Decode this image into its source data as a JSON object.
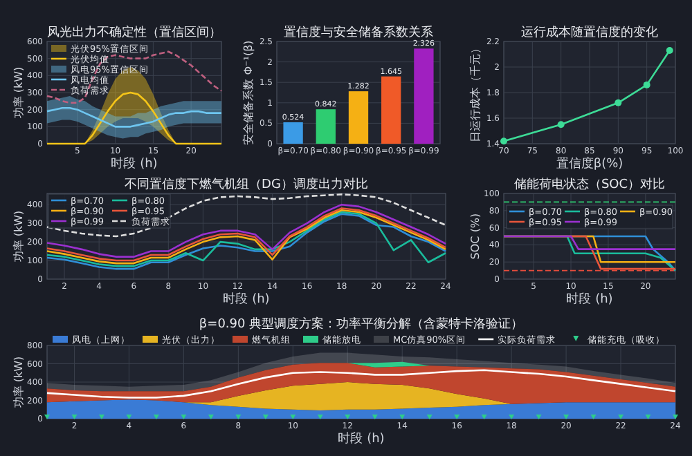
{
  "chart_data": [
    {
      "type": "line",
      "title": "风光出力不确定性（置信区间）",
      "xlabel": "时段 (h)",
      "ylabel": "功率 (kW)",
      "annotations": [
        "光伏95%置信区间",
        "风电95%置信区间"
      ],
      "x": [
        1,
        2,
        3,
        4,
        5,
        6,
        7,
        8,
        9,
        10,
        11,
        12,
        13,
        14,
        15,
        16,
        17,
        18,
        19,
        20,
        21,
        22,
        23,
        24
      ],
      "xlim": [
        1,
        24
      ],
      "xticks": [
        5,
        10,
        15,
        20
      ],
      "ylim": [
        0,
        600
      ],
      "yticks": [
        0,
        100,
        200,
        300,
        400,
        500,
        600
      ],
      "grid": true,
      "legend": "top left",
      "series": [
        {
          "name": "光伏均值",
          "color": "#f5c518",
          "values": [
            0,
            0,
            0,
            0,
            0,
            0,
            50,
            120,
            190,
            250,
            290,
            300,
            290,
            250,
            190,
            120,
            50,
            0,
            0,
            0,
            0,
            0,
            0,
            0
          ],
          "lower": [
            0,
            0,
            0,
            0,
            0,
            0,
            20,
            60,
            100,
            130,
            150,
            150,
            150,
            130,
            100,
            60,
            20,
            0,
            0,
            0,
            0,
            0,
            0,
            0
          ],
          "upper": [
            0,
            0,
            0,
            0,
            0,
            0,
            80,
            180,
            290,
            380,
            430,
            450,
            430,
            380,
            290,
            180,
            80,
            0,
            0,
            0,
            0,
            0,
            0,
            0
          ]
        },
        {
          "name": "风电均值",
          "color": "#6ec6f0",
          "values": [
            190,
            200,
            210,
            210,
            200,
            180,
            160,
            140,
            120,
            100,
            100,
            100,
            110,
            120,
            130,
            150,
            170,
            180,
            180,
            190,
            190,
            180,
            180,
            180
          ],
          "lower": [
            120,
            130,
            140,
            140,
            130,
            110,
            90,
            70,
            50,
            40,
            30,
            40,
            40,
            60,
            70,
            80,
            100,
            110,
            120,
            120,
            120,
            120,
            120,
            120
          ],
          "upper": [
            250,
            260,
            270,
            280,
            260,
            250,
            220,
            200,
            180,
            160,
            160,
            160,
            180,
            180,
            200,
            220,
            230,
            240,
            250,
            250,
            250,
            250,
            250,
            250
          ]
        },
        {
          "name": "负荷需求",
          "color": "#c06080",
          "line_style": "dashed",
          "values": [
            280,
            270,
            250,
            240,
            240,
            270,
            380,
            470,
            510,
            520,
            510,
            500,
            500,
            500,
            520,
            530,
            540,
            520,
            490,
            460,
            420,
            380,
            340,
            310
          ]
        }
      ]
    },
    {
      "type": "bar",
      "title": "置信度与安全储备系数关系",
      "ylabel": "安全储备系数 Φ⁻¹(β)",
      "categories": [
        "β=0.70",
        "β=0.80",
        "β=0.90",
        "β=0.95",
        "β=0.99"
      ],
      "values": [
        0.524,
        0.842,
        1.282,
        1.645,
        2.326
      ],
      "colors": [
        "#3b9be6",
        "#2ecc71",
        "#f5b014",
        "#f05a28",
        "#a020c0"
      ],
      "ylim": [
        0,
        2.5
      ],
      "yticks": [
        0,
        0.5,
        1,
        1.5,
        2,
        2.5
      ],
      "data_labels": true,
      "grid": true
    },
    {
      "type": "line",
      "title": "运行成本随置信度的变化",
      "xlabel": "置信度β(%)",
      "ylabel": "日运行成本（千元）",
      "x": [
        70,
        80,
        90,
        95,
        99
      ],
      "values": [
        1.42,
        1.55,
        1.72,
        1.86,
        2.13
      ],
      "color": "#3ddc97",
      "marker": "circle",
      "xlim": [
        70,
        100
      ],
      "xticks": [
        70,
        75,
        80,
        85,
        90,
        95,
        100
      ],
      "ylim": [
        1.4,
        2.2
      ],
      "yticks": [
        1.4,
        1.6,
        1.8,
        2,
        2.2
      ],
      "grid": true
    },
    {
      "type": "line",
      "title": "不同置信度下燃气机组（DG）调度出力对比",
      "xlabel": "时段 (h)",
      "ylabel": "功率 (kW)",
      "x": [
        1,
        2,
        3,
        4,
        5,
        6,
        7,
        8,
        9,
        10,
        11,
        12,
        13,
        14,
        15,
        16,
        17,
        18,
        19,
        20,
        21,
        22,
        23,
        24
      ],
      "xlim": [
        1,
        24
      ],
      "xticks": [
        2,
        4,
        6,
        8,
        10,
        12,
        14,
        16,
        18,
        20,
        22,
        24
      ],
      "ylim": [
        0,
        460
      ],
      "yticks": [
        0,
        100,
        200,
        300,
        400
      ],
      "grid": true,
      "legend": "top left",
      "series": [
        {
          "name": "β=0.70",
          "color": "#2f8fd8",
          "values": [
            115,
            105,
            85,
            65,
            55,
            55,
            90,
            90,
            130,
            165,
            180,
            170,
            150,
            150,
            175,
            250,
            310,
            350,
            340,
            290,
            280,
            230,
            200,
            150
          ]
        },
        {
          "name": "β=0.80",
          "color": "#1abc9c",
          "values": [
            130,
            120,
            100,
            80,
            70,
            70,
            100,
            100,
            140,
            100,
            200,
            190,
            160,
            160,
            200,
            260,
            320,
            360,
            350,
            300,
            155,
            210,
            90,
            140
          ]
        },
        {
          "name": "β=0.90",
          "color": "#f5b014",
          "values": [
            150,
            135,
            115,
            95,
            85,
            85,
            115,
            115,
            160,
            200,
            225,
            230,
            210,
            105,
            225,
            270,
            330,
            370,
            360,
            330,
            290,
            250,
            210,
            160
          ]
        },
        {
          "name": "β=0.95",
          "color": "#e8553a",
          "values": [
            165,
            150,
            130,
            110,
            100,
            100,
            130,
            130,
            175,
            215,
            240,
            245,
            225,
            130,
            230,
            280,
            340,
            380,
            370,
            340,
            300,
            260,
            220,
            170
          ]
        },
        {
          "name": "β=0.99",
          "color": "#9b30d0",
          "values": [
            195,
            180,
            160,
            135,
            120,
            120,
            150,
            150,
            200,
            240,
            260,
            260,
            240,
            160,
            250,
            300,
            360,
            400,
            390,
            360,
            320,
            280,
            240,
            190
          ]
        },
        {
          "name": "负荷需求",
          "color": "#dddddd",
          "line_style": "dashed",
          "values": [
            280,
            260,
            245,
            235,
            230,
            245,
            275,
            330,
            380,
            420,
            440,
            445,
            440,
            430,
            435,
            445,
            450,
            455,
            450,
            440,
            410,
            370,
            330,
            290
          ]
        }
      ]
    },
    {
      "type": "line",
      "title": "储能荷电状态（SOC）对比",
      "xlabel": "时段 (h)",
      "ylabel": "SOC (%)",
      "xlim": [
        1,
        24
      ],
      "xticks": [
        5,
        10,
        15,
        20
      ],
      "ylim": [
        0,
        100
      ],
      "yticks": [
        0,
        20,
        40,
        60,
        80,
        100
      ],
      "grid": true,
      "legend": "right",
      "ref_lines": [
        {
          "axis": "y",
          "value": 90,
          "color": "#2ecc71",
          "line_style": "dashed"
        },
        {
          "axis": "y",
          "value": 10,
          "color": "#e74c3c",
          "line_style": "dashed"
        }
      ],
      "series": [
        {
          "name": "β=0.70",
          "color": "#2f8fd8",
          "x": [
            1,
            20,
            21,
            23,
            24
          ],
          "values": [
            50,
            50,
            35,
            20,
            10
          ]
        },
        {
          "name": "β=0.80",
          "color": "#1abc9c",
          "x": [
            1,
            9.5,
            10.5,
            20,
            22,
            24
          ],
          "values": [
            50,
            50,
            30,
            30,
            25,
            10
          ]
        },
        {
          "name": "β=0.90",
          "color": "#f5b014",
          "x": [
            1,
            13,
            14,
            24
          ],
          "values": [
            50,
            50,
            20,
            20
          ]
        },
        {
          "name": "β=0.95",
          "color": "#e8553a",
          "x": [
            1,
            12,
            14,
            24
          ],
          "values": [
            50,
            50,
            12,
            12
          ]
        },
        {
          "name": "β=0.99",
          "color": "#9b30d0",
          "x": [
            1,
            10,
            11,
            24
          ],
          "values": [
            50,
            50,
            35,
            35
          ]
        }
      ]
    },
    {
      "type": "area",
      "stacked": true,
      "title": "β=0.90 典型调度方案：功率平衡分解（含蒙特卡洛验证）",
      "xlabel": "时段 (h)",
      "ylabel": "功率 (kW)",
      "annotations": [
        "MC仿真90%区间"
      ],
      "x": [
        1,
        2,
        3,
        4,
        5,
        6,
        7,
        8,
        9,
        10,
        11,
        12,
        13,
        14,
        15,
        16,
        17,
        18,
        19,
        20,
        21,
        22,
        23,
        24
      ],
      "xlim": [
        1,
        24
      ],
      "xticks": [
        2,
        4,
        6,
        8,
        10,
        12,
        14,
        16,
        18,
        20,
        22,
        24
      ],
      "ylim": [
        0,
        800
      ],
      "yticks": [
        0,
        200,
        400,
        600,
        800
      ],
      "grid": true,
      "legend": "top",
      "series": [
        {
          "name": "风电（上网）",
          "color": "#3a7bd5",
          "values": [
            180,
            190,
            200,
            210,
            200,
            180,
            150,
            130,
            110,
            100,
            90,
            100,
            100,
            110,
            120,
            130,
            150,
            160,
            170,
            180,
            180,
            180,
            180,
            180
          ]
        },
        {
          "name": "光伏（出力）",
          "color": "#e6b422",
          "values": [
            0,
            0,
            0,
            0,
            0,
            0,
            30,
            120,
            200,
            260,
            290,
            300,
            280,
            260,
            210,
            140,
            70,
            0,
            0,
            0,
            0,
            0,
            0,
            0
          ]
        },
        {
          "name": "燃气机组",
          "color": "#c0462e",
          "values": [
            150,
            120,
            100,
            90,
            100,
            120,
            170,
            200,
            220,
            230,
            230,
            210,
            180,
            200,
            250,
            300,
            340,
            390,
            370,
            330,
            290,
            250,
            210,
            170
          ]
        },
        {
          "name": "储能放电",
          "color": "#2ecc8a",
          "values": [
            null,
            null,
            null,
            null,
            null,
            null,
            null,
            null,
            null,
            null,
            null,
            0,
            50,
            50,
            0,
            null,
            null,
            null,
            null,
            null,
            null,
            null,
            null,
            null
          ]
        },
        {
          "name": "实际负荷需求",
          "type": "line",
          "color": "#ffffff",
          "values": [
            280,
            260,
            240,
            230,
            230,
            250,
            300,
            380,
            450,
            500,
            510,
            500,
            480,
            480,
            500,
            520,
            530,
            510,
            490,
            460,
            420,
            380,
            340,
            300
          ],
          "lower": [
            330,
            310,
            300,
            300,
            300,
            300,
            350,
            450,
            530,
            590,
            610,
            610,
            610,
            610,
            580,
            570,
            560,
            550,
            540,
            510,
            470,
            430,
            390,
            350
          ],
          "upper": [
            390,
            370,
            360,
            350,
            360,
            370,
            420,
            510,
            610,
            680,
            720,
            720,
            700,
            680,
            670,
            650,
            630,
            610,
            590,
            570,
            520,
            480,
            440,
            390
          ]
        },
        {
          "name": "储能充电（吸收）",
          "type": "scatter",
          "color": "#2ecc8a",
          "marker": "triangle",
          "values": [
            0,
            0,
            0,
            0,
            0,
            0,
            0,
            0,
            0,
            0,
            0,
            0,
            0,
            0,
            0,
            0,
            0,
            0,
            0,
            0,
            0,
            0,
            0,
            0
          ]
        }
      ]
    }
  ]
}
